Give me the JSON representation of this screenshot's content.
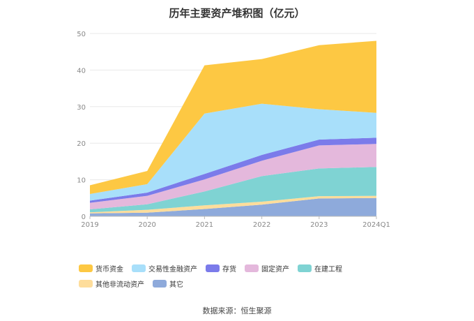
{
  "chart_data": {
    "type": "area",
    "stacked": true,
    "title": "历年主要资产堆积图（亿元）",
    "categories": [
      "2019",
      "2020",
      "2021",
      "2022",
      "2023",
      "2024Q1"
    ],
    "y_ticks": [
      "0",
      "10",
      "20",
      "30",
      "40",
      "50"
    ],
    "ylim": [
      0,
      50
    ],
    "grid": true,
    "legend_position": "bottom",
    "series": [
      {
        "name": "其它",
        "color": "#8eaadb",
        "values": [
          0.8,
          1.0,
          2.0,
          3.2,
          4.9,
          5.0
        ]
      },
      {
        "name": "其他非流动资产",
        "color": "#fedd9b",
        "values": [
          0.3,
          0.8,
          1.0,
          0.8,
          0.6,
          0.6
        ]
      },
      {
        "name": "在建工程",
        "color": "#7fd3d3",
        "values": [
          0.8,
          1.5,
          3.8,
          7.0,
          7.6,
          7.9
        ]
      },
      {
        "name": "固定资产",
        "color": "#e4b8dc",
        "values": [
          1.8,
          2.3,
          3.3,
          4.2,
          6.3,
          6.3
        ]
      },
      {
        "name": "存货",
        "color": "#7b7bea",
        "values": [
          0.6,
          0.9,
          1.5,
          1.6,
          1.6,
          1.7
        ]
      },
      {
        "name": "交易性金融资产",
        "color": "#a8dffa",
        "values": [
          1.8,
          2.3,
          16.5,
          14.0,
          8.3,
          6.8
        ]
      },
      {
        "name": "货币资金",
        "color": "#fdc843",
        "values": [
          2.4,
          3.6,
          13.2,
          12.2,
          17.5,
          19.7
        ]
      }
    ],
    "legend_order": [
      "货币资金",
      "交易性金融资产",
      "存货",
      "固定资产",
      "在建工程",
      "其他非流动资产",
      "其它"
    ],
    "source": "数据来源：恒生聚源"
  }
}
